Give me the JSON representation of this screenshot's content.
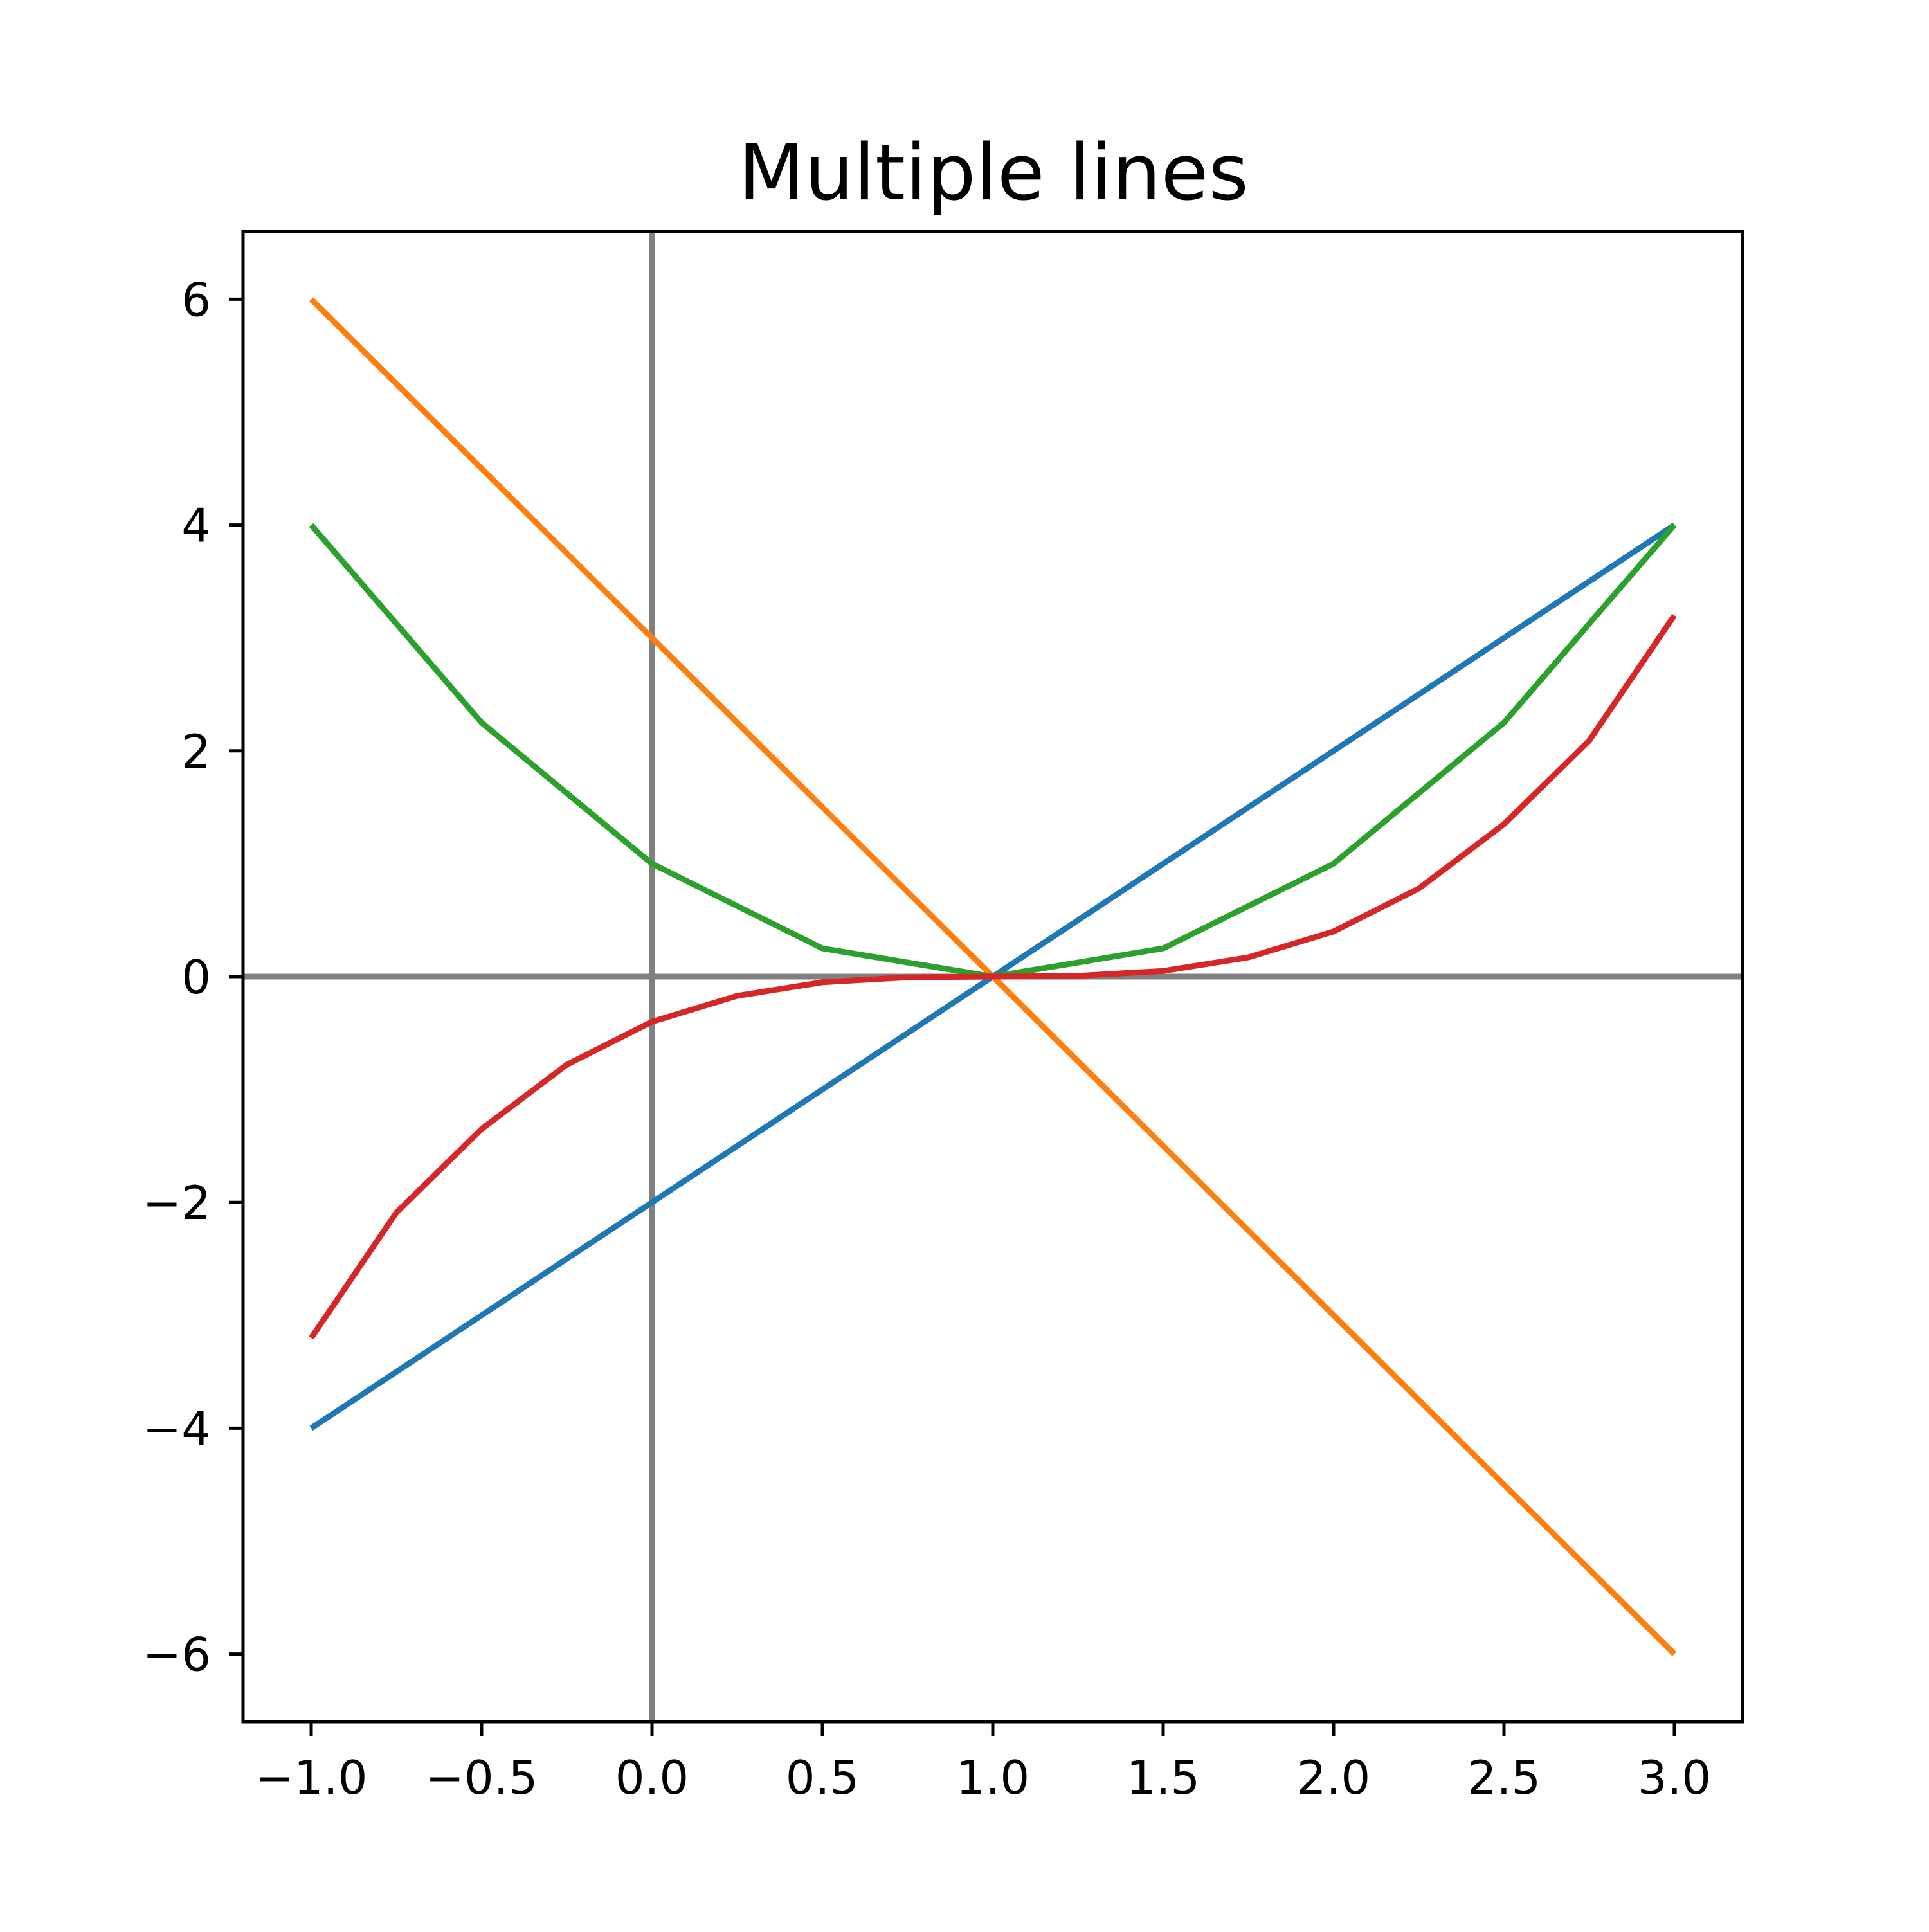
{
  "chart_data": {
    "type": "line",
    "title": "Multiple lines",
    "xlabel": "",
    "ylabel": "",
    "xlim": [
      -1.2,
      3.2
    ],
    "ylim": [
      -6.6,
      6.6
    ],
    "x_ticks": [
      -1.0,
      -0.5,
      0.0,
      0.5,
      1.0,
      1.5,
      2.0,
      2.5,
      3.0
    ],
    "x_tick_labels": [
      "−1.0",
      "−0.5",
      "0.0",
      "0.5",
      "1.0",
      "1.5",
      "2.0",
      "2.5",
      "3.0"
    ],
    "y_ticks": [
      -6,
      -4,
      -2,
      0,
      2,
      4,
      6
    ],
    "y_tick_labels": [
      "−6",
      "−4",
      "−2",
      "0",
      "2",
      "4",
      "6"
    ],
    "grid": false,
    "legend": "none",
    "reference_lines": {
      "x": 0,
      "y": 0,
      "color": "#808080"
    },
    "series": [
      {
        "color": "#1f77b4",
        "x": [
          -1,
          1,
          3
        ],
        "y": [
          -4,
          0,
          4
        ]
      },
      {
        "color": "#ff7f0e",
        "x": [
          -1,
          0,
          1,
          2,
          3
        ],
        "y": [
          6,
          3,
          0,
          -3,
          -6
        ]
      },
      {
        "color": "#2ca02c",
        "x": [
          -1,
          -0.5,
          0,
          0.5,
          1,
          1.5,
          2,
          2.5,
          3
        ],
        "y": [
          4,
          2.25,
          1,
          0.25,
          0,
          0.25,
          1,
          2.25,
          4
        ]
      },
      {
        "color": "#d62728",
        "x": [
          -1,
          -0.75,
          -0.5,
          -0.25,
          0,
          0.25,
          0.5,
          0.75,
          1,
          1.25,
          1.5,
          1.75,
          2,
          2.25,
          2.5,
          2.75,
          3
        ],
        "y": [
          -3.2,
          -2.09,
          -1.35,
          -0.78,
          -0.4,
          -0.17,
          -0.05,
          -0.006,
          0,
          0.006,
          0.05,
          0.17,
          0.4,
          0.78,
          1.35,
          2.09,
          3.2
        ]
      }
    ]
  }
}
